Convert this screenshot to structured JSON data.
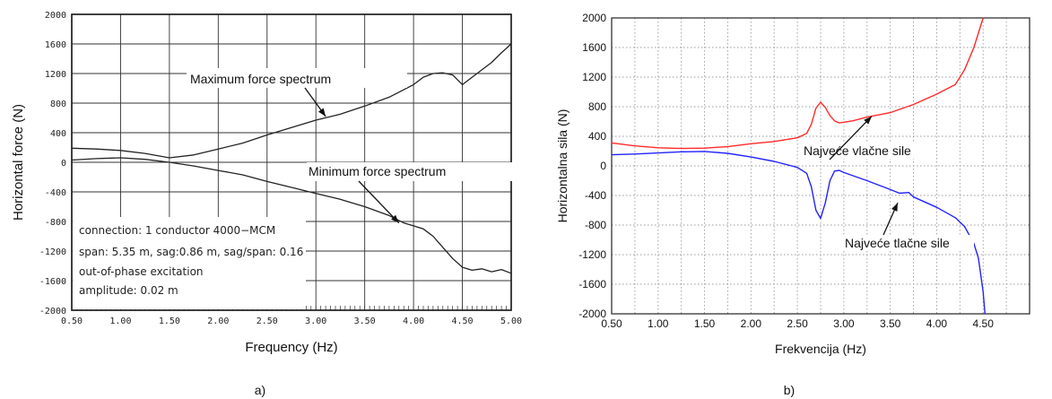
{
  "panel_labels": {
    "a": "a)",
    "b": "b)"
  },
  "chart_data": [
    {
      "panel": "a",
      "type": "line",
      "xlabel": "Frequency (Hz)",
      "ylabel": "Horizontal force (N)",
      "xlim": [
        0.5,
        5.0
      ],
      "ylim": [
        -2000,
        2000
      ],
      "xticks": [
        "0.50",
        "1.00",
        "1.50",
        "2.00",
        "2.50",
        "3.00",
        "3.50",
        "4.00",
        "4.50",
        "5.00"
      ],
      "yticks": [
        "2000",
        "1600",
        "1200",
        "800",
        "400",
        "0",
        "-400",
        "-800",
        "-1200",
        "-1600",
        "-2000"
      ],
      "grid": true,
      "color": "#222222",
      "series": [
        {
          "x": [
            0.5,
            0.75,
            1.0,
            1.25,
            1.5,
            1.75,
            2.0,
            2.25,
            2.5,
            2.75,
            3.0,
            3.25,
            3.5,
            3.75,
            4.0,
            4.1,
            4.2,
            4.3,
            4.4,
            4.5,
            4.6,
            4.7,
            4.8,
            4.9,
            5.0
          ],
          "y": [
            190,
            180,
            160,
            120,
            60,
            100,
            180,
            260,
            370,
            470,
            570,
            650,
            760,
            880,
            1050,
            1150,
            1200,
            1210,
            1180,
            1050,
            1150,
            1250,
            1350,
            1480,
            1600
          ]
        },
        {
          "x": [
            0.5,
            0.75,
            1.0,
            1.25,
            1.5,
            1.75,
            2.0,
            2.25,
            2.5,
            2.75,
            3.0,
            3.25,
            3.5,
            3.75,
            3.9,
            4.0,
            4.1,
            4.2,
            4.3,
            4.4,
            4.5,
            4.6,
            4.7,
            4.8,
            4.9,
            5.0
          ],
          "y": [
            30,
            50,
            60,
            40,
            0,
            -50,
            -110,
            -170,
            -260,
            -340,
            -420,
            -500,
            -600,
            -720,
            -820,
            -860,
            -900,
            -1000,
            -1150,
            -1300,
            -1420,
            -1460,
            -1440,
            -1480,
            -1450,
            -1500
          ]
        }
      ],
      "annotations": [
        {
          "text": "Maximum force spectrum",
          "x": 2.8,
          "y": 1200,
          "arrow_to": [
            3.1,
            620
          ]
        },
        {
          "text": "Minimum force spectrum",
          "x": 3.85,
          "y": 80,
          "arrow_to": [
            3.85,
            -820
          ]
        }
      ],
      "info_box": [
        "connection: 1 conductor 4000−MCM",
        "span: 5.35 m, sag:0.86 m, sag/span: 0.16",
        "out-of-phase excitation",
        "amplitude: 0.02 m"
      ]
    },
    {
      "panel": "b",
      "type": "line",
      "xlabel": "Frekvencija (Hz)",
      "ylabel": "Horizontalna sila (N)",
      "xlim": [
        0.5,
        5.0
      ],
      "ylim": [
        -2000,
        2000
      ],
      "xticks": [
        "0.50",
        "1.00",
        "1.50",
        "2.00",
        "2.50",
        "3.00",
        "3.50",
        "4.00",
        "4.50"
      ],
      "yticks": [
        "2000",
        "1600",
        "1200",
        "800",
        "400",
        "0",
        "-400",
        "-800",
        "-1200",
        "-1600",
        "-2000"
      ],
      "grid": true,
      "series": [
        {
          "color": "#ff2a2a",
          "x": [
            0.5,
            0.75,
            1.0,
            1.25,
            1.5,
            1.75,
            2.0,
            2.25,
            2.5,
            2.6,
            2.65,
            2.7,
            2.75,
            2.8,
            2.85,
            2.9,
            2.95,
            3.0,
            3.1,
            3.25,
            3.5,
            3.75,
            4.0,
            4.2,
            4.3,
            4.4,
            4.5
          ],
          "y": [
            310,
            270,
            245,
            235,
            240,
            260,
            300,
            330,
            380,
            440,
            560,
            780,
            860,
            790,
            680,
            610,
            580,
            590,
            610,
            660,
            720,
            830,
            970,
            1100,
            1300,
            1600,
            2000
          ]
        },
        {
          "color": "#2222ff",
          "x": [
            0.5,
            0.75,
            1.0,
            1.25,
            1.5,
            1.75,
            2.0,
            2.25,
            2.5,
            2.6,
            2.65,
            2.7,
            2.75,
            2.8,
            2.85,
            2.9,
            2.95,
            3.0,
            3.25,
            3.5,
            3.6,
            3.7,
            3.75,
            4.0,
            4.2,
            4.3,
            4.4,
            4.45,
            4.5,
            4.52
          ],
          "y": [
            150,
            160,
            175,
            190,
            195,
            170,
            120,
            60,
            -20,
            -100,
            -280,
            -600,
            -710,
            -500,
            -200,
            -70,
            -60,
            -90,
            -200,
            -320,
            -370,
            -360,
            -420,
            -560,
            -700,
            -820,
            -1050,
            -1250,
            -1700,
            -2000
          ]
        }
      ],
      "annotations": [
        {
          "text": "Najveće vlačne sile",
          "x": 3.8,
          "y": 1170,
          "arrow_to": [
            3.3,
            670
          ]
        },
        {
          "text": "Najveće tlačne sile",
          "x": 4.05,
          "y": -1250,
          "arrow_to": [
            3.58,
            -500
          ]
        }
      ]
    }
  ]
}
